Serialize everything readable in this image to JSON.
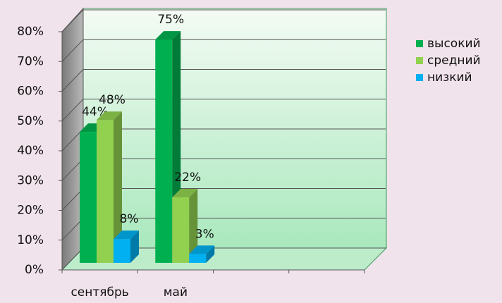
{
  "chart_data": {
    "type": "bar3d",
    "categories": [
      "сентябрь",
      "май",
      null,
      null
    ],
    "series": [
      {
        "name": "высокий",
        "color": "#00b050",
        "values": [
          44,
          75,
          null,
          null
        ],
        "value_labels": [
          "44%",
          "75%",
          null,
          null
        ]
      },
      {
        "name": "средний",
        "color": "#92d050",
        "values": [
          48,
          22,
          null,
          null
        ],
        "value_labels": [
          "48%",
          "22%",
          null,
          null
        ]
      },
      {
        "name": "низкий",
        "color": "#00b0f0",
        "values": [
          8,
          3,
          null,
          null
        ],
        "value_labels": [
          "8%",
          "3%",
          null,
          null
        ]
      }
    ],
    "ylim": [
      0,
      80
    ],
    "yticks": [
      {
        "value": 0,
        "label": "0%"
      },
      {
        "value": 10,
        "label": "10%"
      },
      {
        "value": 20,
        "label": "20%"
      },
      {
        "value": 30,
        "label": "30%"
      },
      {
        "value": 40,
        "label": "40%"
      },
      {
        "value": 50,
        "label": "50%"
      },
      {
        "value": 60,
        "label": "60%"
      },
      {
        "value": 70,
        "label": "70%"
      },
      {
        "value": 80,
        "label": "80%"
      }
    ],
    "grid": true,
    "legend": "right"
  }
}
